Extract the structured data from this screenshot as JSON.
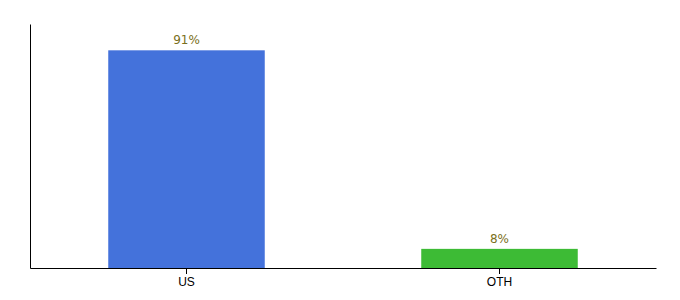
{
  "chart_data": {
    "type": "bar",
    "categories": [
      "US",
      "OTH"
    ],
    "values": [
      91,
      8
    ],
    "value_labels": [
      "91%",
      "8%"
    ],
    "data_labels": true,
    "colors": [
      "#4472db",
      "#3dbb35"
    ],
    "ylim": [
      0,
      102
    ],
    "tick_labels": "x"
  }
}
